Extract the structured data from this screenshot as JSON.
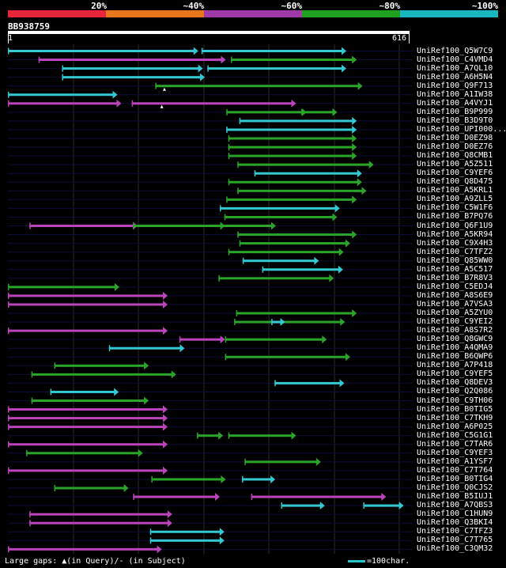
{
  "legend": {
    "segments": [
      {
        "color": "#e8243a"
      },
      {
        "color": "#e8761c"
      },
      {
        "color": "#a03aa8"
      },
      {
        "color": "#1fa11f"
      },
      {
        "color": "#19b6c0"
      }
    ],
    "labels": [
      "20%",
      "~40%",
      "~60%",
      "~80%",
      "~100%"
    ]
  },
  "query": {
    "name": "BB938759",
    "start": "1",
    "end": "616",
    "length": 616
  },
  "colors": {
    "purple": "#bb44bb",
    "green": "#2aa52a",
    "cyan": "#33c8d2",
    "grid": "#2a2a2a",
    "row_line": "#0d0d3a"
  },
  "hits": [
    {
      "name": "UniRef100_Q5W7C9",
      "segments": [
        [
          0,
          292,
          "cyan"
        ],
        [
          297,
          519,
          "cyan"
        ]
      ]
    },
    {
      "name": "UniRef100_C4VMD4",
      "segments": [
        [
          47,
          334,
          "purple"
        ],
        [
          342,
          535,
          "green"
        ]
      ]
    },
    {
      "name": "UniRef100_A7QL10",
      "segments": [
        [
          83,
          299,
          "cyan"
        ],
        [
          306,
          519,
          "cyan"
        ]
      ]
    },
    {
      "name": "UniRef100_A6H5N4",
      "segments": [
        [
          83,
          302,
          "cyan"
        ]
      ]
    },
    {
      "name": "UniRef100_Q9F713",
      "segments": [
        [
          226,
          544,
          "green"
        ]
      ]
    },
    {
      "name": "UniRef100_A1IW38",
      "segments": [
        [
          0,
          168,
          "cyan"
        ]
      ]
    },
    {
      "name": "UniRef100_A4VYJ1",
      "segments": [
        [
          0,
          174,
          "purple"
        ],
        [
          190,
          442,
          "purple"
        ]
      ]
    },
    {
      "name": "UniRef100_B9P999",
      "segments": [
        [
          335,
          458,
          "green"
        ],
        [
          450,
          505,
          "green"
        ]
      ]
    },
    {
      "name": "UniRef100_B3D9T0",
      "segments": [
        [
          355,
          535,
          "cyan"
        ]
      ]
    },
    {
      "name": "UniRef100_UPI000...",
      "segments": [
        [
          335,
          535,
          "cyan"
        ]
      ]
    },
    {
      "name": "UniRef100_D0EZ98",
      "segments": [
        [
          338,
          535,
          "green"
        ]
      ]
    },
    {
      "name": "UniRef100_D0EZ76",
      "segments": [
        [
          338,
          535,
          "green"
        ]
      ]
    },
    {
      "name": "UniRef100_Q8CMB1",
      "segments": [
        [
          338,
          535,
          "green"
        ]
      ]
    },
    {
      "name": "UniRef100_A5Z511",
      "segments": [
        [
          352,
          561,
          "green"
        ]
      ]
    },
    {
      "name": "UniRef100_C9YEF6",
      "segments": [
        [
          378,
          543,
          "cyan"
        ]
      ]
    },
    {
      "name": "UniRef100_Q8D475",
      "segments": [
        [
          338,
          543,
          "green"
        ]
      ]
    },
    {
      "name": "UniRef100_A5KRL1",
      "segments": [
        [
          352,
          550,
          "green"
        ]
      ]
    },
    {
      "name": "UniRef100_A9ZLL5",
      "segments": [
        [
          335,
          535,
          "green"
        ]
      ]
    },
    {
      "name": "UniRef100_C5W1F6",
      "segments": [
        [
          325,
          509,
          "cyan"
        ]
      ]
    },
    {
      "name": "UniRef100_B7PQ76",
      "segments": [
        [
          332,
          505,
          "green"
        ]
      ]
    },
    {
      "name": "UniRef100_Q6F1U9",
      "segments": [
        [
          33,
          199,
          "purple"
        ],
        [
          192,
          333,
          "green"
        ],
        [
          326,
          411,
          "green"
        ]
      ]
    },
    {
      "name": "UniRef100_A5KR94",
      "segments": [
        [
          352,
          535,
          "green"
        ]
      ]
    },
    {
      "name": "UniRef100_C9X4H3",
      "segments": [
        [
          355,
          525,
          "green"
        ]
      ]
    },
    {
      "name": "UniRef100_C7TFZ2",
      "segments": [
        [
          338,
          515,
          "green"
        ]
      ]
    },
    {
      "name": "UniRef100_Q85WW0",
      "segments": [
        [
          360,
          477,
          "cyan"
        ]
      ]
    },
    {
      "name": "UniRef100_A5C517",
      "segments": [
        [
          390,
          514,
          "cyan"
        ]
      ]
    },
    {
      "name": "UniRef100_B7R8V3",
      "segments": [
        [
          323,
          500,
          "green"
        ]
      ]
    },
    {
      "name": "UniRef100_C5EDJ4",
      "segments": [
        [
          0,
          171,
          "green"
        ]
      ]
    },
    {
      "name": "UniRef100_A8S6E9",
      "segments": [
        [
          0,
          245,
          "purple"
        ]
      ]
    },
    {
      "name": "UniRef100_A7VSA3",
      "segments": [
        [
          0,
          245,
          "purple"
        ]
      ]
    },
    {
      "name": "UniRef100_A5ZYU0",
      "segments": [
        [
          350,
          535,
          "green"
        ]
      ]
    },
    {
      "name": "UniRef100_C9YEI2",
      "segments": [
        [
          347,
          517,
          "green"
        ],
        [
          404,
          425,
          "cyan"
        ]
      ]
    },
    {
      "name": "UniRef100_A8S7R2",
      "segments": [
        [
          0,
          245,
          "purple"
        ]
      ]
    },
    {
      "name": "UniRef100_Q8GWC9",
      "segments": [
        [
          263,
          333,
          "purple"
        ],
        [
          333,
          489,
          "green"
        ]
      ]
    },
    {
      "name": "UniRef100_A4QMA9",
      "segments": [
        [
          155,
          271,
          "cyan"
        ]
      ]
    },
    {
      "name": "UniRef100_B6QWP6",
      "segments": [
        [
          333,
          525,
          "green"
        ]
      ]
    },
    {
      "name": "UniRef100_A7P418",
      "segments": [
        [
          71,
          216,
          "green"
        ]
      ]
    },
    {
      "name": "UniRef100_C9YEF5",
      "segments": [
        [
          36,
          258,
          "green"
        ]
      ]
    },
    {
      "name": "UniRef100_Q8DEV3",
      "segments": [
        [
          409,
          516,
          "cyan"
        ]
      ]
    },
    {
      "name": "UniRef100_Q2Q086",
      "segments": [
        [
          65,
          170,
          "cyan"
        ]
      ]
    },
    {
      "name": "UniRef100_C9TH06",
      "segments": [
        [
          36,
          216,
          "green"
        ]
      ]
    },
    {
      "name": "UniRef100_B0TIG5",
      "segments": [
        [
          0,
          245,
          "purple"
        ]
      ]
    },
    {
      "name": "UniRef100_C7TKH9",
      "segments": [
        [
          0,
          245,
          "purple"
        ]
      ]
    },
    {
      "name": "UniRef100_A6P025",
      "segments": [
        [
          0,
          245,
          "purple"
        ]
      ]
    },
    {
      "name": "UniRef100_C5G1G1",
      "segments": [
        [
          290,
          330,
          "green"
        ],
        [
          338,
          442,
          "green"
        ]
      ]
    },
    {
      "name": "UniRef100_C7TAR6",
      "segments": [
        [
          0,
          245,
          "purple"
        ]
      ]
    },
    {
      "name": "UniRef100_C9YEF3",
      "segments": [
        [
          28,
          207,
          "green"
        ]
      ]
    },
    {
      "name": "UniRef100_A1YSF7",
      "segments": [
        [
          363,
          480,
          "green"
        ]
      ]
    },
    {
      "name": "UniRef100_C7T764",
      "segments": [
        [
          0,
          245,
          "purple"
        ]
      ]
    },
    {
      "name": "UniRef100_B0TIG4",
      "segments": [
        [
          220,
          334,
          "green"
        ],
        [
          359,
          410,
          "cyan"
        ]
      ]
    },
    {
      "name": "UniRef100_Q0CJS2",
      "segments": [
        [
          71,
          185,
          "green"
        ]
      ]
    },
    {
      "name": "UniRef100_B5IUJ1",
      "segments": [
        [
          192,
          325,
          "purple"
        ],
        [
          373,
          580,
          "purple"
        ]
      ]
    },
    {
      "name": "UniRef100_A7QBS3",
      "segments": [
        [
          419,
          486,
          "cyan"
        ],
        [
          545,
          607,
          "cyan"
        ]
      ]
    },
    {
      "name": "UniRef100_C1HUN9",
      "segments": [
        [
          33,
          252,
          "purple"
        ]
      ]
    },
    {
      "name": "UniRef100_Q3BKI4",
      "segments": [
        [
          33,
          252,
          "purple"
        ]
      ]
    },
    {
      "name": "UniRef100_C7TFZ3",
      "segments": [
        [
          218,
          332,
          "cyan"
        ]
      ]
    },
    {
      "name": "UniRef100_C7T765",
      "segments": [
        [
          218,
          332,
          "cyan"
        ]
      ]
    },
    {
      "name": "UniRef100_C3QM32",
      "segments": [
        [
          0,
          236,
          "purple"
        ]
      ]
    }
  ],
  "gap_markers": [
    {
      "row": 4,
      "pos": 240
    },
    {
      "row": 6,
      "pos": 236
    }
  ],
  "footer": {
    "text": "Large gaps: ▲(in Query)/- (in Subject)",
    "scale": "=100char."
  }
}
